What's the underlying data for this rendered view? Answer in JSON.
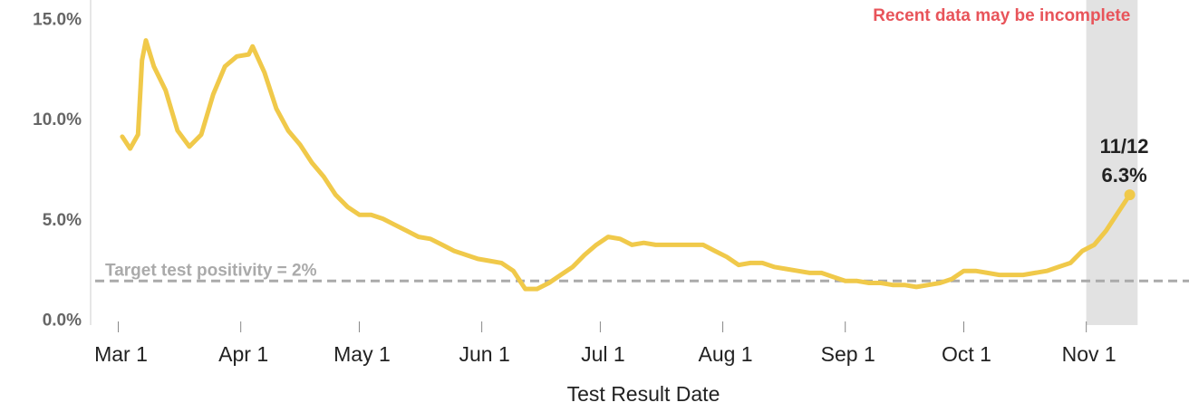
{
  "chart_data": {
    "type": "line",
    "x_label": "Test Result Date",
    "xlim": [
      "Feb 23",
      "Nov 27"
    ],
    "xticks": [
      "Mar 1",
      "Apr 1",
      "May 1",
      "Jun 1",
      "Jul 1",
      "Aug 1",
      "Sep 1",
      "Oct 1",
      "Nov 1"
    ],
    "ylim": [
      -0.2,
      15.2
    ],
    "yticks": [
      {
        "value": 0,
        "label": "0.0%"
      },
      {
        "value": 5,
        "label": "5.0%"
      },
      {
        "value": 10,
        "label": "10.0%"
      },
      {
        "value": 15,
        "label": "15.0%"
      }
    ],
    "x": [
      "Mar 2",
      "Mar 4",
      "Mar 6",
      "Mar 7",
      "Mar 8",
      "Mar 10",
      "Mar 13",
      "Mar 16",
      "Mar 19",
      "Mar 22",
      "Mar 25",
      "Mar 28",
      "Mar 31",
      "Apr 3",
      "Apr 4",
      "Apr 7",
      "Apr 10",
      "Apr 13",
      "Apr 16",
      "Apr 19",
      "Apr 22",
      "Apr 25",
      "Apr 28",
      "May 1",
      "May 4",
      "May 7",
      "May 10",
      "May 13",
      "May 16",
      "May 19",
      "May 22",
      "May 25",
      "May 28",
      "May 31",
      "Jun 3",
      "Jun 6",
      "Jun 9",
      "Jun 12",
      "Jun 15",
      "Jun 18",
      "Jun 21",
      "Jun 24",
      "Jun 27",
      "Jun 30",
      "Jul 3",
      "Jul 6",
      "Jul 9",
      "Jul 12",
      "Jul 15",
      "Jul 18",
      "Jul 21",
      "Jul 24",
      "Jul 27",
      "Jul 30",
      "Aug 2",
      "Aug 5",
      "Aug 8",
      "Aug 11",
      "Aug 14",
      "Aug 17",
      "Aug 20",
      "Aug 23",
      "Aug 26",
      "Aug 29",
      "Sep 1",
      "Sep 4",
      "Sep 7",
      "Sep 10",
      "Sep 13",
      "Sep 16",
      "Sep 19",
      "Sep 22",
      "Sep 25",
      "Sep 28",
      "Oct 1",
      "Oct 4",
      "Oct 7",
      "Oct 10",
      "Oct 13",
      "Oct 16",
      "Oct 19",
      "Oct 22",
      "Oct 25",
      "Oct 28",
      "Oct 31",
      "Nov 3",
      "Nov 6",
      "Nov 9",
      "Nov 12"
    ],
    "series": [
      {
        "color": "#f0c94a",
        "values": [
          9.2,
          8.6,
          9.3,
          13.0,
          14.0,
          12.7,
          11.5,
          9.5,
          8.7,
          9.3,
          11.3,
          12.7,
          13.2,
          13.3,
          13.7,
          12.4,
          10.6,
          9.5,
          8.8,
          7.9,
          7.2,
          6.3,
          5.7,
          5.3,
          5.3,
          5.1,
          4.8,
          4.5,
          4.2,
          4.1,
          3.8,
          3.5,
          3.3,
          3.1,
          3.0,
          2.9,
          2.5,
          1.6,
          1.6,
          1.9,
          2.3,
          2.7,
          3.3,
          3.8,
          4.2,
          4.1,
          3.8,
          3.9,
          3.8,
          3.8,
          3.8,
          3.8,
          3.8,
          3.5,
          3.2,
          2.8,
          2.9,
          2.9,
          2.7,
          2.6,
          2.5,
          2.4,
          2.4,
          2.2,
          2.0,
          2.0,
          1.9,
          1.9,
          1.8,
          1.8,
          1.7,
          1.8,
          1.9,
          2.1,
          2.5,
          2.5,
          2.4,
          2.3,
          2.3,
          2.3,
          2.4,
          2.5,
          2.7,
          2.9,
          3.5,
          3.8,
          4.5,
          5.4,
          6.3
        ],
        "value_labels": [
          null,
          null,
          null,
          null,
          null,
          null,
          null,
          null,
          null,
          null,
          null,
          null,
          null,
          null,
          null,
          null,
          null,
          null,
          null,
          null,
          null,
          null,
          null,
          null,
          null,
          null,
          null,
          null,
          null,
          null,
          null,
          null,
          null,
          null,
          null,
          null,
          null,
          null,
          null,
          null,
          null,
          null,
          null,
          null,
          null,
          null,
          null,
          null,
          null,
          null,
          null,
          null,
          null,
          null,
          null,
          null,
          null,
          null,
          null,
          null,
          null,
          null,
          null,
          null,
          null,
          null,
          null,
          null,
          null,
          null,
          null,
          null,
          null,
          null,
          null,
          null,
          null,
          null,
          null,
          null,
          null,
          null,
          null,
          null,
          null,
          null,
          null,
          null,
          "6.3%"
        ]
      }
    ],
    "annotation": "11/12",
    "target": {
      "value": 2,
      "label": "Target test positivity = 2%",
      "color": "#aaaaaa"
    },
    "highlight": {
      "from": "Nov 1",
      "to": "Nov 14",
      "label": "Recent data may be incomplete",
      "color": "#e2e2e2",
      "label_color": "#e8545a"
    }
  }
}
